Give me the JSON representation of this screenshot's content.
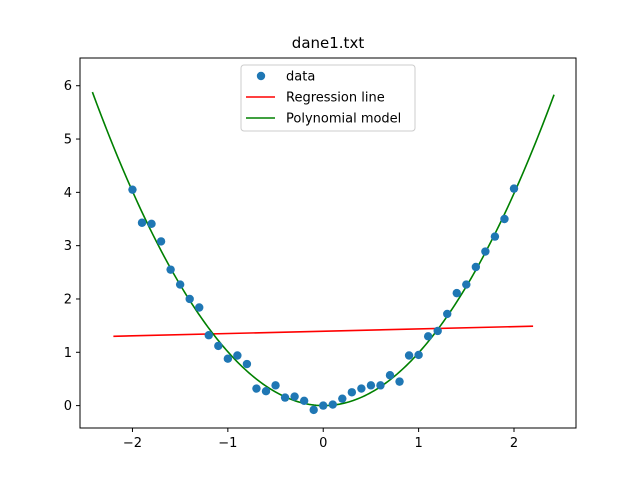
{
  "chart_data": {
    "type": "scatter",
    "title": "dane1.txt",
    "xlabel": "",
    "ylabel": "",
    "xlim": [
      -2.55,
      2.65
    ],
    "ylim": [
      -0.42,
      6.52
    ],
    "xticks": [
      -2,
      -1,
      0,
      1,
      2
    ],
    "yticks": [
      0,
      1,
      2,
      3,
      4,
      5,
      6
    ],
    "grid": false,
    "legend_position": "top-center",
    "colors": {
      "scatter": "#1f77b4",
      "regression": "#ff0000",
      "polynomial": "#008000"
    },
    "series": [
      {
        "name": "data",
        "kind": "scatter",
        "x": [
          -2.0,
          -1.9,
          -1.8,
          -1.7,
          -1.6,
          -1.5,
          -1.4,
          -1.3,
          -1.2,
          -1.1,
          -1.0,
          -0.9,
          -0.8,
          -0.7,
          -0.6,
          -0.5,
          -0.4,
          -0.3,
          -0.2,
          -0.1,
          0.0,
          0.1,
          0.2,
          0.3,
          0.4,
          0.5,
          0.6,
          0.7,
          0.8,
          0.9,
          1.0,
          1.1,
          1.2,
          1.3,
          1.4,
          1.5,
          1.6,
          1.7,
          1.8,
          1.9,
          2.0
        ],
        "y": [
          4.05,
          3.43,
          3.41,
          3.08,
          2.55,
          2.27,
          2.0,
          1.84,
          1.32,
          1.12,
          0.88,
          0.94,
          0.78,
          0.32,
          0.27,
          0.38,
          0.15,
          0.17,
          0.09,
          -0.08,
          0.0,
          0.02,
          0.13,
          0.25,
          0.32,
          0.38,
          0.38,
          0.57,
          0.45,
          0.94,
          0.95,
          1.3,
          1.4,
          1.72,
          2.11,
          2.27,
          2.6,
          2.89,
          3.17,
          3.5,
          4.07
        ]
      },
      {
        "name": "Regression line",
        "kind": "line",
        "x": [
          -2.2,
          2.2
        ],
        "y": [
          1.3,
          1.49
        ]
      },
      {
        "name": "Polynomial model",
        "kind": "curve",
        "model": "quadratic",
        "coefficients": [
          1.0,
          -0.01,
          0.0
        ],
        "x_range": [
          -2.42,
          2.42
        ]
      }
    ]
  }
}
